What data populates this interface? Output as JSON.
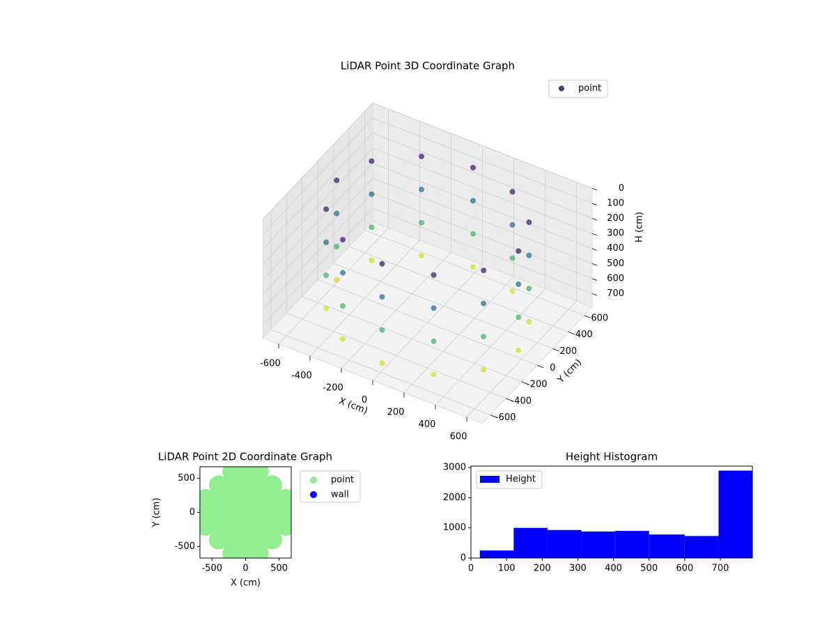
{
  "chart_data": [
    {
      "type": "scatter3d",
      "title": "LiDAR Point 3D Coordinate Graph",
      "xlabel": "X (cm)",
      "ylabel": "Y (cm)",
      "zlabel": "H (cm)",
      "xlim": [
        -700,
        700
      ],
      "ylim": [
        -700,
        700
      ],
      "zlim": [
        0,
        790
      ],
      "zinverted": true,
      "xticks": [
        -600,
        -400,
        -200,
        0,
        200,
        400,
        600
      ],
      "yticks": [
        -600,
        -400,
        -200,
        0,
        200,
        400,
        600
      ],
      "zticks": [
        0,
        100,
        200,
        300,
        400,
        500,
        600,
        700
      ],
      "colormap": [
        "#440154",
        "#3b528b",
        "#21918c",
        "#5ec962",
        "#fde725"
      ],
      "grid": true,
      "legend": "upper right",
      "series": [
        {
          "name": "point",
          "color": "#443983",
          "x": [
            0,
            0,
            0,
            0,
            290,
            290,
            290,
            290,
            -290,
            -290,
            -290,
            -290,
            502,
            502,
            502,
            502,
            -502,
            -502,
            -502,
            -502,
            580,
            580,
            580,
            580,
            -580,
            -580,
            -580,
            -580,
            502,
            502,
            502,
            502,
            -502,
            -502,
            -502,
            -502,
            290,
            290,
            290,
            290,
            -290,
            -290,
            -290,
            -290,
            0,
            0,
            0,
            0
          ],
          "y": [
            580,
            580,
            580,
            580,
            502,
            502,
            502,
            502,
            502,
            502,
            502,
            502,
            290,
            290,
            290,
            290,
            290,
            290,
            290,
            290,
            0,
            0,
            0,
            0,
            0,
            0,
            0,
            0,
            -290,
            -290,
            -290,
            -290,
            -290,
            -290,
            -290,
            -290,
            -502,
            -502,
            -502,
            -502,
            -502,
            -502,
            -502,
            -502,
            -580,
            -580,
            -580,
            -580
          ],
          "z": [
            80,
            300,
            520,
            740,
            80,
            300,
            520,
            740,
            80,
            300,
            520,
            740,
            80,
            300,
            520,
            740,
            80,
            300,
            520,
            740,
            80,
            300,
            520,
            740,
            80,
            300,
            520,
            740,
            80,
            300,
            520,
            740,
            80,
            300,
            520,
            740,
            80,
            300,
            520,
            740,
            80,
            300,
            520,
            740,
            80,
            300,
            520,
            740
          ]
        }
      ]
    },
    {
      "type": "scatter",
      "title": "LiDAR Point 2D Coordinate Graph",
      "xlabel": "X (cm)",
      "ylabel": "Y (cm)",
      "xlim": [
        -680,
        680
      ],
      "ylim": [
        -670,
        670
      ],
      "xticks": [
        -500,
        0,
        500
      ],
      "yticks": [
        -500,
        0,
        500
      ],
      "legend": "outside right",
      "series": [
        {
          "name": "point",
          "color": "#90ee90",
          "x": [
            -200,
            0,
            200,
            -400,
            -200,
            0,
            200,
            400,
            -600,
            -400,
            -200,
            0,
            200,
            400,
            600,
            -600,
            -400,
            -200,
            0,
            200,
            400,
            600,
            -600,
            -400,
            -200,
            0,
            200,
            400,
            600,
            -400,
            -200,
            0,
            200,
            400,
            -200,
            0,
            200
          ],
          "y": [
            600,
            600,
            600,
            400,
            400,
            400,
            400,
            400,
            200,
            200,
            200,
            200,
            200,
            200,
            200,
            0,
            0,
            0,
            0,
            0,
            0,
            0,
            -200,
            -200,
            -200,
            -200,
            -200,
            -200,
            -200,
            -400,
            -400,
            -400,
            -400,
            -400,
            -600,
            -600,
            -600
          ]
        },
        {
          "name": "wall",
          "color": "#0000ff",
          "x": [],
          "y": []
        }
      ]
    },
    {
      "type": "histogram",
      "title": "Height Histogram",
      "bins": [
        25,
        120,
        215,
        310,
        405,
        500,
        600,
        695,
        790
      ],
      "series": [
        {
          "name": "Height",
          "color": "#0000ff",
          "values": [
            250,
            1000,
            930,
            880,
            900,
            780,
            730,
            2900
          ]
        }
      ],
      "xlim": [
        0,
        790
      ],
      "ylim": [
        0,
        3050
      ],
      "xticks": [
        0,
        100,
        200,
        300,
        400,
        500,
        600,
        700
      ],
      "yticks": [
        0,
        1000,
        2000,
        3000
      ],
      "legend": "upper left"
    }
  ]
}
